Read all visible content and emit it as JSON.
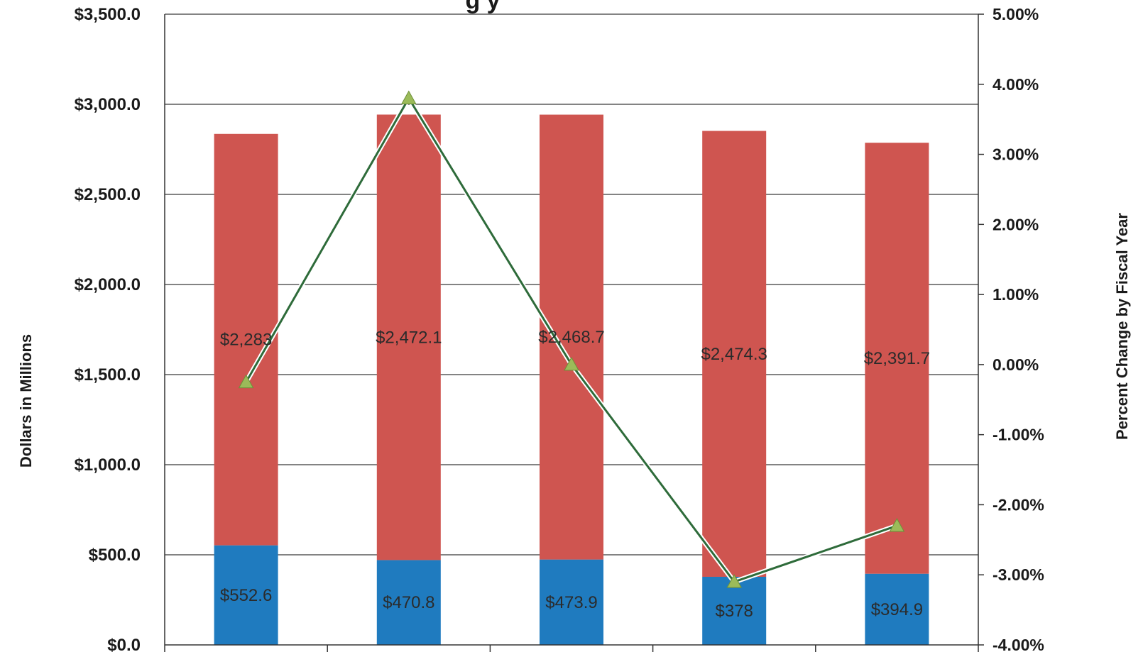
{
  "chart_data": {
    "type": "bar",
    "title_fragment": "g        y",
    "xlabel": "",
    "ylabel": "Dollars in Millions",
    "y2label": "Percent Change by Fiscal Year",
    "ylim": [
      0,
      3500
    ],
    "y2lim": [
      -4.0,
      5.0
    ],
    "y_ticks": [
      "$0.0",
      "$500.0",
      "$1,000.0",
      "$1,500.0",
      "$2,000.0",
      "$2,500.0",
      "$3,000.0",
      "$3,500.0"
    ],
    "y2_ticks": [
      "-4.00%",
      "-3.00%",
      "-2.00%",
      "-1.00%",
      "0.00%",
      "1.00%",
      "2.00%",
      "3.00%",
      "4.00%",
      "5.00%"
    ],
    "categories": [
      "",
      "",
      "",
      "",
      ""
    ],
    "series": [
      {
        "kind": "bar",
        "values": [
          552.6,
          470.8,
          473.9,
          378,
          394.9
        ],
        "labels": [
          "$552.6",
          "$470.8",
          "$473.9",
          "$378",
          "$394.9"
        ],
        "color": "#1f7bbf"
      },
      {
        "kind": "bar",
        "values": [
          2283,
          2472.1,
          2468.7,
          2474.3,
          2391.7
        ],
        "labels": [
          "$2,283",
          "$2,472.1",
          "$2,468.7",
          "$2,474.3",
          "$2,391.7"
        ],
        "color": "#cf5550"
      },
      {
        "kind": "line",
        "axis": "right",
        "values": [
          -0.25,
          3.8,
          0.0,
          -3.1,
          -2.3
        ],
        "color": "#2e6b3a",
        "marker_color": "#9bbb59"
      }
    ],
    "grid": true,
    "legend": "none"
  }
}
